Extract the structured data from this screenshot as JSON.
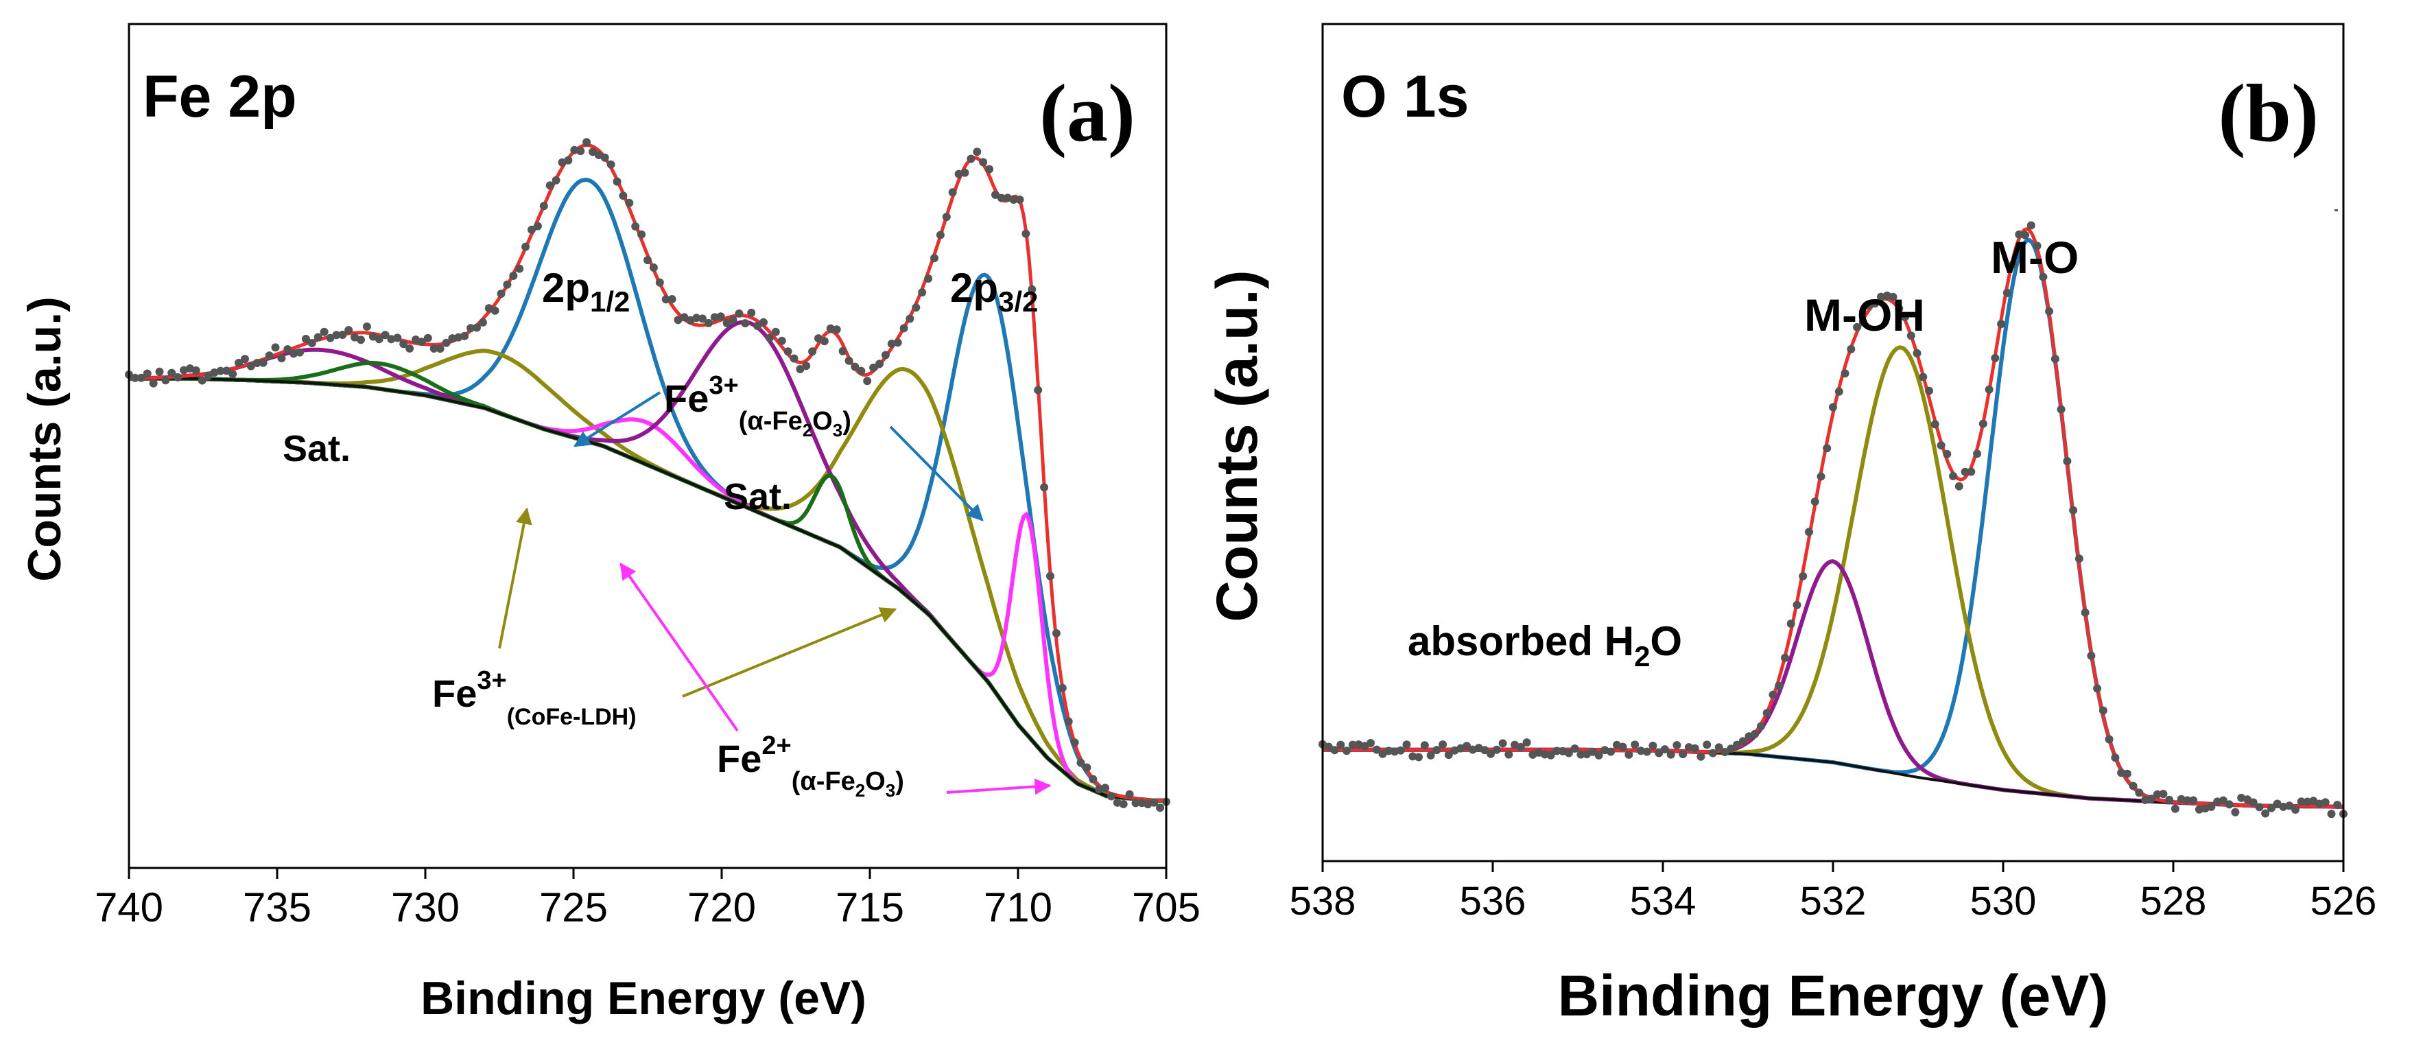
{
  "chart_data": [
    {
      "type": "line",
      "panel_label": "(a)",
      "title": "Fe 2p",
      "xlabel": "Binding Energy (eV)",
      "ylabel": "Counts (a.u.)",
      "xlim": [
        740,
        705
      ],
      "ylim": [
        0,
        1
      ],
      "x_ticks": [
        740,
        735,
        730,
        725,
        720,
        715,
        710,
        705
      ],
      "y_ticks": [],
      "grid": false,
      "colors": {
        "data": "#555555",
        "envelope": "#e8302c",
        "background": "#111111",
        "fe3_oxide": "#1f77b4",
        "fe3_ldh": "#8f8a10",
        "fe2": "#ff33ff",
        "sat": "#8e1a8e",
        "minor": "#1a6e1a"
      },
      "background_curve": {
        "x": [
          705.5,
          707,
          708,
          709,
          710,
          711,
          712,
          713,
          714,
          716,
          718,
          720,
          722,
          724,
          726,
          728,
          730,
          732,
          734,
          736,
          738,
          740
        ],
        "y": [
          0.08,
          0.085,
          0.1,
          0.13,
          0.17,
          0.22,
          0.26,
          0.3,
          0.33,
          0.38,
          0.41,
          0.44,
          0.47,
          0.5,
          0.52,
          0.545,
          0.56,
          0.57,
          0.575,
          0.578,
          0.58,
          0.58
        ]
      },
      "components": [
        {
          "name": "Fe3+ (α-Fe2O3) 2p3/2",
          "color": "fe3_oxide",
          "center": 711.0,
          "height": 0.48,
          "width": 1.3
        },
        {
          "name": "Fe3+ (α-Fe2O3) 2p1/2",
          "color": "fe3_oxide",
          "center": 724.5,
          "height": 0.31,
          "width": 1.7
        },
        {
          "name": "Fe3+ (CoFe-LDH) 2p3/2",
          "color": "fe3_ldh",
          "center": 713.5,
          "height": 0.27,
          "width": 1.9
        },
        {
          "name": "Fe3+ (CoFe-LDH) 2p1/2",
          "color": "fe3_ldh",
          "center": 727.5,
          "height": 0.07,
          "width": 2.0
        },
        {
          "name": "Fe2+ (α-Fe2O3) 2p3/2",
          "color": "fe2",
          "center": 709.7,
          "height": 0.26,
          "width": 0.5
        },
        {
          "name": "Fe2+ (α-Fe2O3) 2p1/2",
          "color": "fe2",
          "center": 722.5,
          "height": 0.05,
          "width": 1.3
        },
        {
          "name": "Sat. 719",
          "color": "sat",
          "center": 719.0,
          "height": 0.22,
          "width": 1.9
        },
        {
          "name": "Sat. 733",
          "color": "sat",
          "center": 733.5,
          "height": 0.04,
          "width": 2.0
        },
        {
          "name": "Minor 716",
          "color": "minor",
          "center": 716.3,
          "height": 0.08,
          "width": 0.55
        },
        {
          "name": "Minor 732",
          "color": "minor",
          "center": 731.5,
          "height": 0.03,
          "width": 1.5
        }
      ],
      "annotations": {
        "p12_main": "2p",
        "p12_sub": "1/2",
        "p32_main": "2p",
        "p32_sub": "3/2",
        "sat1": "Sat.",
        "sat2": "Sat.",
        "fe3_oxide_main": "Fe",
        "fe3_oxide_sup": "3+",
        "fe3_oxide_sub_open": "(α-Fe",
        "fe3_oxide_sub_2": "2",
        "fe3_oxide_sub_o": "O",
        "fe3_oxide_sub_3": "3",
        "fe3_oxide_sub_close": ")",
        "fe3_ldh_main": "Fe",
        "fe3_ldh_sup": "3+",
        "fe3_ldh_sub": "(CoFe-LDH)",
        "fe2_main": "Fe",
        "fe2_sup": "2+",
        "fe2_sub_open": "(α-Fe",
        "fe2_sub_2": "2",
        "fe2_sub_o": "O",
        "fe2_sub_3": "3",
        "fe2_sub_close": ")"
      }
    },
    {
      "type": "line",
      "panel_label": "(b)",
      "title": "O 1s",
      "xlabel": "Binding Energy (eV)",
      "ylabel": "Counts (a.u.)",
      "xlim": [
        538,
        526
      ],
      "ylim": [
        0,
        1
      ],
      "x_ticks": [
        538,
        536,
        534,
        532,
        530,
        528,
        526
      ],
      "y_ticks": [],
      "grid": false,
      "colors": {
        "data": "#555555",
        "envelope": "#e8302c",
        "background": "#111111",
        "mo": "#1f77b4",
        "moh": "#8f8a10",
        "h2o": "#8e1a8e"
      },
      "background_curve": {
        "x": [
          526,
          527,
          528,
          529,
          530,
          531,
          532,
          533,
          534,
          535,
          536,
          537,
          538
        ],
        "y": [
          0.065,
          0.066,
          0.07,
          0.075,
          0.085,
          0.1,
          0.118,
          0.128,
          0.132,
          0.133,
          0.133,
          0.133,
          0.133
        ]
      },
      "components": [
        {
          "name": "M-O",
          "color": "mo",
          "center": 529.7,
          "height": 0.66,
          "width": 0.45
        },
        {
          "name": "M-OH",
          "color": "moh",
          "center": 531.2,
          "height": 0.51,
          "width": 0.55
        },
        {
          "name": "absorbed H2O",
          "color": "h2o",
          "center": 532.0,
          "height": 0.24,
          "width": 0.42
        }
      ],
      "annotations": {
        "mo": "M-O",
        "moh": "M-OH",
        "h2o_main": "absorbed H",
        "h2o_sub": "2",
        "h2o_end": "O"
      }
    }
  ]
}
